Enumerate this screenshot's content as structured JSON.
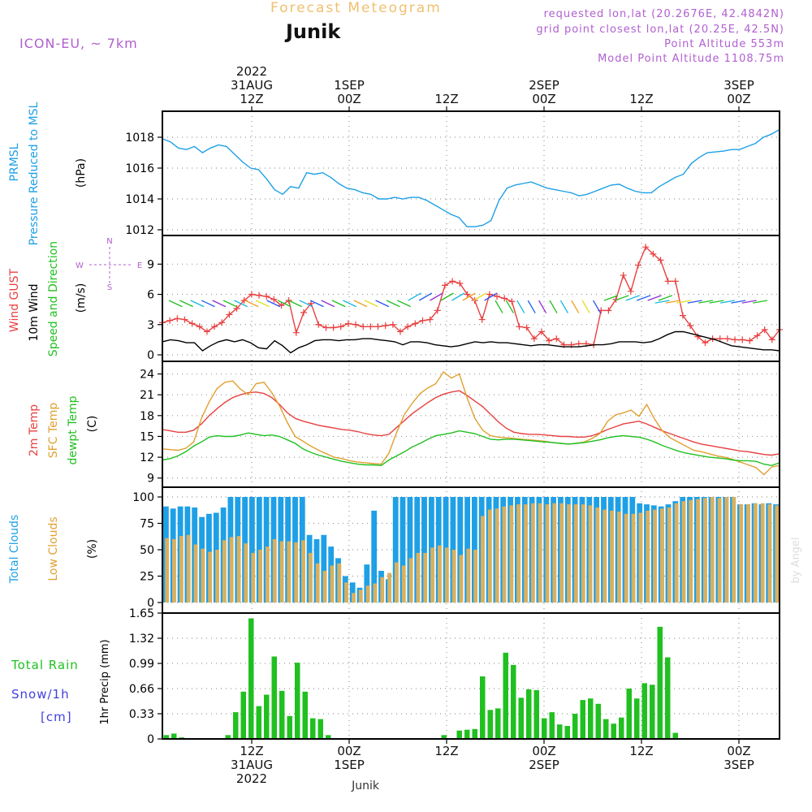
{
  "header": {
    "title": "Forecast Meteogram",
    "location": "Junik",
    "model": "ICON-EU, ~ 7km",
    "requested": "requested lon,lat (20.2676E, 42.4842N)",
    "grid_point": "grid point closest lon,lat (20.25E, 42.5N)",
    "point_altitude": "Point Altitude 553m",
    "model_altitude": "Model Point Altitude 1108.75m"
  },
  "footer": {
    "location": "Junik",
    "credit": "by Angel"
  },
  "colors": {
    "pressure": "#1ea0e6",
    "gust": "#e84040",
    "wind": "#000000",
    "wind_dir": "#20c020",
    "temp": "#e84040",
    "sfc": "#e0a030",
    "dewpt": "#20c020",
    "total_cloud": "#1ea0e6",
    "low_cloud": "#d8b060",
    "rain": "#20c020",
    "snow": "#4040e0",
    "axis_label_purple": "#b060d0"
  },
  "time_axis": {
    "top_labels": [
      {
        "lines": [
          "2022",
          "31AUG",
          "12Z"
        ],
        "t": 12
      },
      {
        "lines": [
          "1SEP",
          "00Z"
        ],
        "t": 24
      },
      {
        "lines": [
          "12Z"
        ],
        "t": 36
      },
      {
        "lines": [
          "2SEP",
          "00Z"
        ],
        "t": 48
      },
      {
        "lines": [
          "12Z"
        ],
        "t": 60
      },
      {
        "lines": [
          "3SEP",
          "00Z"
        ],
        "t": 72
      }
    ],
    "bottom_labels": [
      {
        "lines": [
          "12Z",
          "31AUG",
          "2022"
        ],
        "t": 12
      },
      {
        "lines": [
          "00Z",
          "1SEP"
        ],
        "t": 24
      },
      {
        "lines": [
          "12Z"
        ],
        "t": 36
      },
      {
        "lines": [
          "00Z",
          "2SEP"
        ],
        "t": 48
      },
      {
        "lines": [
          "12Z"
        ],
        "t": 60
      },
      {
        "lines": [
          "00Z",
          "3SEP"
        ],
        "t": 72
      }
    ],
    "t_start": 1,
    "t_end": 77,
    "step_hours": 1
  },
  "panels_text": {
    "pressure": {
      "labels": [
        "PRMSL",
        "Pressure Reduced to MSL"
      ],
      "unit": "(hPa)"
    },
    "wind": {
      "labels": [
        "Wind GUST",
        "10m Wind",
        "Speed and Direction"
      ],
      "unit": "(m/s)",
      "compass": {
        "n": "N",
        "s": "S",
        "w": "W",
        "e": "E"
      }
    },
    "temp": {
      "labels": [
        "2m Temp",
        "SFC Temp",
        "dewpt Temp"
      ],
      "unit": "(C)"
    },
    "clouds": {
      "labels": [
        "Total Clouds",
        "Low Clouds"
      ],
      "unit": "(%)"
    },
    "precip": {
      "labels": [
        "Total  Rain",
        "Snow/1h",
        "[cm]"
      ],
      "unit": "1hr Precip (mm)"
    }
  },
  "chart_data": [
    {
      "type": "line",
      "series": [
        {
          "name": "PRMSL",
          "values": [
            1017.9,
            1017.7,
            1017.3,
            1017.2,
            1017.4,
            1017.0,
            1017.3,
            1017.5,
            1017.4,
            1016.9,
            1016.4,
            1016.0,
            1015.9,
            1015.3,
            1014.6,
            1014.3,
            1014.8,
            1014.7,
            1015.7,
            1015.6,
            1015.7,
            1015.4,
            1015.0,
            1014.7,
            1014.6,
            1014.4,
            1014.3,
            1014.0,
            1014.0,
            1014.1,
            1014.0,
            1014.1,
            1014.1,
            1013.9,
            1013.6,
            1013.3,
            1013.0,
            1012.8,
            1012.2,
            1012.2,
            1012.3,
            1012.6,
            1013.9,
            1014.7,
            1014.9,
            1015.0,
            1015.1,
            1014.9,
            1014.7,
            1014.6,
            1014.5,
            1014.4,
            1014.2,
            1014.3,
            1014.5,
            1014.7,
            1014.9,
            1014.95,
            1014.7,
            1014.5,
            1014.4,
            1014.4,
            1014.8,
            1015.1,
            1015.4,
            1015.6,
            1016.3,
            1016.7,
            1017.0,
            1017.05,
            1017.1,
            1017.2,
            1017.2,
            1017.4,
            1017.6,
            1018.0,
            1018.2,
            1018.5
          ]
        }
      ],
      "ylim": [
        1012,
        1019
      ],
      "yticks": [
        1012,
        1014,
        1016,
        1018
      ]
    },
    {
      "type": "line",
      "series": [
        {
          "name": "Wind GUST",
          "values": [
            3.2,
            3.4,
            3.6,
            3.5,
            3.1,
            2.8,
            2.3,
            2.8,
            3.2,
            4.0,
            4.6,
            5.4,
            6.0,
            5.9,
            5.8,
            5.5,
            4.9,
            5.4,
            2.2,
            4.2,
            5.1,
            3.0,
            2.7,
            2.7,
            2.8,
            3.1,
            3.0,
            2.8,
            2.8,
            2.8,
            2.9,
            3.0,
            2.3,
            2.8,
            3.1,
            3.4,
            3.5,
            4.4,
            6.9,
            7.3,
            7.1,
            6.0,
            5.4,
            3.5,
            6.0,
            5.8,
            5.6,
            5.3,
            2.8,
            2.7,
            1.6,
            2.3,
            1.4,
            1.6,
            1.0,
            1.0,
            1.1,
            1.1,
            1.0,
            4.4,
            4.4,
            5.5,
            7.9,
            6.3,
            8.9,
            10.7,
            10.0,
            9.4,
            7.3,
            7.3,
            3.9,
            2.9,
            1.8,
            1.2,
            1.6,
            1.6,
            1.6,
            1.5,
            1.5,
            1.4,
            1.9,
            2.5,
            1.5,
            2.5
          ]
        },
        {
          "name": "10m Wind",
          "values": [
            1.3,
            1.5,
            1.4,
            1.2,
            1.2,
            0.4,
            0.9,
            1.3,
            1.5,
            1.3,
            1.5,
            1.2,
            0.7,
            0.6,
            1.4,
            0.9,
            0.2,
            0.7,
            1.0,
            1.4,
            1.5,
            1.5,
            1.4,
            1.5,
            1.5,
            1.6,
            1.6,
            1.5,
            1.4,
            1.3,
            1.0,
            1.3,
            1.3,
            1.2,
            1.0,
            0.9,
            0.8,
            0.9,
            1.1,
            1.3,
            1.2,
            1.3,
            1.2,
            1.2,
            1.1,
            1.0,
            0.9,
            1.0,
            1.0,
            0.9,
            0.8,
            0.8,
            0.8,
            0.9,
            1.0,
            1.0,
            1.1,
            1.3,
            1.3,
            1.3,
            1.2,
            1.3,
            1.6,
            2.0,
            2.3,
            2.3,
            2.1,
            1.9,
            1.7,
            1.5,
            1.2,
            0.9,
            0.8,
            0.7,
            0.6,
            0.5,
            0.5,
            0.4
          ]
        }
      ],
      "ylim": [
        0,
        11.2
      ],
      "yticks": [
        0,
        3,
        6,
        9
      ]
    },
    {
      "type": "line",
      "series": [
        {
          "name": "2m Temp",
          "values": [
            16.0,
            15.8,
            15.6,
            15.6,
            15.9,
            16.8,
            18.0,
            19.0,
            19.9,
            20.6,
            21.0,
            21.3,
            21.4,
            21.2,
            20.6,
            19.6,
            18.4,
            17.6,
            17.2,
            16.9,
            16.6,
            16.4,
            16.2,
            16.0,
            15.9,
            15.7,
            15.4,
            15.2,
            15.1,
            15.3,
            16.3,
            17.3,
            18.3,
            19.1,
            19.9,
            20.6,
            21.1,
            21.4,
            21.6,
            20.9,
            20.1,
            19.3,
            18.2,
            17.1,
            16.2,
            15.6,
            15.4,
            15.3,
            15.3,
            15.2,
            15.1,
            15.0,
            15.0,
            14.9,
            14.9,
            15.1,
            15.5,
            16.0,
            16.4,
            16.8,
            17.0,
            17.2,
            16.8,
            16.3,
            15.8,
            15.4,
            15.0,
            14.6,
            14.2,
            13.9,
            13.7,
            13.5,
            13.3,
            13.1,
            12.9,
            12.8,
            12.6,
            12.4,
            12.3,
            12.5
          ]
        },
        {
          "name": "SFC Temp",
          "values": [
            13.2,
            13.1,
            13.0,
            13.3,
            14.2,
            17.6,
            20.0,
            21.9,
            22.8,
            23.0,
            21.8,
            21.0,
            22.6,
            22.8,
            21.3,
            19.4,
            17.0,
            15.0,
            14.3,
            13.6,
            13.0,
            12.5,
            12.0,
            11.8,
            11.5,
            11.3,
            11.2,
            11.1,
            11.0,
            12.6,
            15.6,
            18.2,
            19.8,
            21.2,
            22.0,
            22.6,
            24.3,
            23.4,
            24.0,
            20.6,
            17.6,
            15.9,
            15.1,
            14.9,
            14.8,
            14.7,
            14.6,
            14.5,
            14.4,
            14.3,
            14.1,
            14.0,
            13.9,
            14.0,
            14.2,
            14.7,
            15.4,
            17.2,
            18.1,
            18.4,
            18.8,
            17.9,
            19.6,
            17.5,
            15.8,
            14.8,
            14.2,
            13.6,
            13.0,
            12.8,
            12.5,
            12.2,
            12.0,
            11.7,
            11.3,
            10.9,
            10.5,
            9.5,
            10.6,
            10.8
          ]
        },
        {
          "name": "dewpt Temp",
          "values": [
            11.6,
            11.8,
            12.2,
            12.8,
            13.6,
            14.2,
            14.9,
            15.1,
            15.0,
            15.0,
            15.2,
            15.5,
            15.3,
            15.1,
            15.2,
            15.0,
            14.5,
            14.0,
            13.2,
            12.7,
            12.3,
            12.0,
            11.7,
            11.4,
            11.2,
            11.0,
            10.9,
            10.9,
            10.8,
            11.6,
            12.2,
            12.8,
            13.5,
            14.0,
            14.6,
            15.1,
            15.3,
            15.5,
            15.8,
            15.6,
            15.4,
            15.0,
            14.6,
            14.5,
            14.6,
            14.6,
            14.5,
            14.4,
            14.3,
            14.2,
            14.1,
            14.0,
            13.9,
            14.0,
            14.1,
            14.3,
            14.5,
            14.8,
            15.0,
            15.1,
            15.0,
            14.9,
            14.6,
            14.2,
            13.7,
            13.3,
            12.9,
            12.6,
            12.4,
            12.2,
            12.0,
            11.9,
            11.8,
            11.6,
            11.5,
            11.5,
            11.4,
            11.0,
            10.8,
            11.2
          ]
        }
      ],
      "ylim": [
        8.5,
        25
      ],
      "yticks": [
        9,
        12,
        15,
        18,
        21,
        24
      ]
    },
    {
      "type": "bar",
      "series": [
        {
          "name": "Total Clouds",
          "values": [
            91,
            89,
            91,
            91,
            90,
            81,
            84,
            85,
            90,
            100,
            100,
            100,
            100,
            100,
            100,
            100,
            100,
            100,
            100,
            100,
            64,
            60,
            64,
            53,
            42,
            25,
            19,
            14,
            36,
            87,
            30,
            22,
            100,
            100,
            100,
            100,
            100,
            100,
            100,
            100,
            100,
            100,
            100,
            100,
            100,
            100,
            100,
            100,
            100,
            100,
            100,
            100,
            100,
            100,
            100,
            100,
            100,
            100,
            100,
            100,
            100,
            100,
            100,
            100,
            100,
            100,
            94,
            93,
            92,
            91,
            93,
            96,
            100,
            100,
            100,
            100,
            100,
            100,
            100,
            100,
            93,
            93,
            94,
            93,
            94,
            93
          ]
        },
        {
          "name": "Low Clouds",
          "values": [
            61,
            60,
            63,
            64,
            55,
            51,
            48,
            50,
            59,
            62,
            63,
            56,
            47,
            50,
            53,
            60,
            58,
            58,
            57,
            59,
            47,
            37,
            30,
            35,
            37,
            19,
            9,
            12,
            16,
            18,
            24,
            28,
            38,
            35,
            42,
            47,
            47,
            52,
            54,
            52,
            50,
            45,
            51,
            50,
            82,
            88,
            89,
            91,
            92,
            93,
            93,
            94,
            94,
            93,
            94,
            94,
            93,
            93,
            93,
            92,
            90,
            88,
            87,
            86,
            84,
            84,
            85,
            87,
            88,
            89,
            90,
            94,
            96,
            97,
            98,
            99,
            100,
            99,
            100,
            100,
            93,
            93,
            94,
            94,
            93,
            92
          ]
        }
      ],
      "ylim": [
        0,
        100
      ],
      "yticks": [
        0,
        25,
        50,
        75,
        100
      ]
    },
    {
      "type": "bar",
      "series": [
        {
          "name": "Total Rain",
          "values": [
            0.05,
            0.07,
            0.02,
            0.01,
            0.0,
            0.0,
            0.0,
            0.0,
            0.05,
            0.35,
            0.62,
            1.58,
            0.43,
            0.58,
            1.08,
            0.63,
            0.3,
            1.0,
            0.62,
            0.27,
            0.26,
            0.05,
            0.0,
            0.0,
            0.0,
            0.0,
            0.0,
            0.0,
            0.0,
            0.0,
            0.0,
            0.0,
            0.0,
            0.0,
            0.0,
            0.0,
            0.05,
            0.0,
            0.11,
            0.12,
            0.13,
            0.82,
            0.38,
            0.4,
            1.13,
            0.97,
            0.54,
            0.65,
            0.64,
            0.27,
            0.35,
            0.19,
            0.17,
            0.33,
            0.51,
            0.53,
            0.46,
            0.26,
            0.2,
            0.28,
            0.66,
            0.53,
            0.73,
            0.71,
            1.47,
            1.07,
            0.08,
            0.0,
            0.0,
            0.0,
            0.0,
            0.0,
            0.0,
            0.0,
            0.0,
            0.0,
            0.0,
            0.0,
            0.0,
            0.0
          ]
        },
        {
          "name": "Snow/1h",
          "values": []
        }
      ],
      "ylim": [
        0,
        1.65
      ],
      "yticks": [
        0,
        0.33,
        0.66,
        0.99,
        1.32,
        1.65
      ]
    }
  ]
}
